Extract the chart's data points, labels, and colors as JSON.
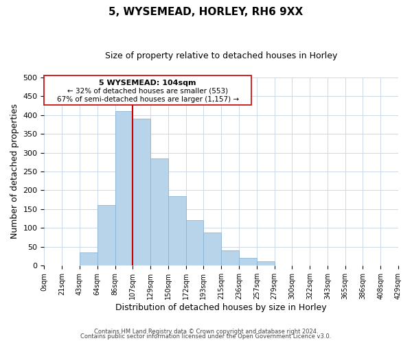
{
  "title": "5, WYSEMEAD, HORLEY, RH6 9XX",
  "subtitle": "Size of property relative to detached houses in Horley",
  "xlabel": "Distribution of detached houses by size in Horley",
  "ylabel": "Number of detached properties",
  "bin_labels": [
    "0sqm",
    "21sqm",
    "43sqm",
    "64sqm",
    "86sqm",
    "107sqm",
    "129sqm",
    "150sqm",
    "172sqm",
    "193sqm",
    "215sqm",
    "236sqm",
    "257sqm",
    "279sqm",
    "300sqm",
    "322sqm",
    "343sqm",
    "365sqm",
    "386sqm",
    "408sqm",
    "429sqm"
  ],
  "bar_values": [
    0,
    0,
    35,
    160,
    410,
    390,
    285,
    185,
    120,
    87,
    40,
    20,
    11,
    0,
    0,
    0,
    0,
    0,
    0,
    0
  ],
  "bar_color": "#b8d4ea",
  "bar_edge_color": "#8ab4d4",
  "annotation_title": "5 WYSEMEAD: 104sqm",
  "annotation_line1": "← 32% of detached houses are smaller (553)",
  "annotation_line2": "67% of semi-detached houses are larger (1,157) →",
  "vline_color": "#cc0000",
  "vline_bin_index": 5,
  "ylim": [
    0,
    500
  ],
  "yticks": [
    0,
    50,
    100,
    150,
    200,
    250,
    300,
    350,
    400,
    450,
    500
  ],
  "footer1": "Contains HM Land Registry data © Crown copyright and database right 2024.",
  "footer2": "Contains public sector information licensed under the Open Government Licence v3.0.",
  "background_color": "#ffffff",
  "grid_color": "#ccd8e8"
}
